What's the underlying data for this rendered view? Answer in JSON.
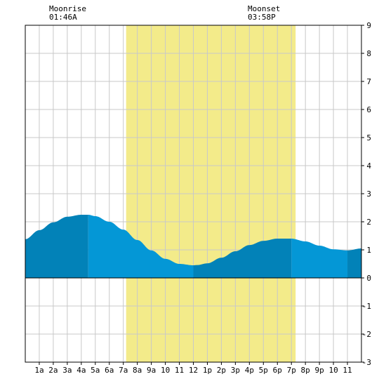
{
  "chart_data": {
    "type": "area",
    "x_unit": "hour of day",
    "x_range": [
      0,
      24
    ],
    "ylim": [
      -3,
      9
    ],
    "y_ticks": [
      "9",
      "8",
      "7",
      "6",
      "5",
      "4",
      "3",
      "2",
      "1",
      "0",
      "-1",
      "-2",
      "-3"
    ],
    "x_tick_labels": [
      "1a",
      "2a",
      "3a",
      "4a",
      "5a",
      "6a",
      "7a",
      "8a",
      "9a",
      "10",
      "11",
      "12",
      "1p",
      "2p",
      "3p",
      "4p",
      "5p",
      "6p",
      "7p",
      "8p",
      "9p",
      "10",
      "11"
    ],
    "grid": true,
    "daylight": {
      "start": 7.2,
      "end": 19.3
    },
    "moonrise": {
      "label": "Moonrise",
      "time": "01:46A"
    },
    "moonset": {
      "label": "Moonset",
      "time": "03:58P"
    },
    "series": [
      {
        "x": [
          0,
          1,
          2,
          3,
          4,
          4.5,
          5,
          6,
          7,
          8,
          9,
          10,
          11,
          12,
          12.3,
          13,
          14,
          15,
          16,
          17,
          18,
          18.9,
          19,
          20,
          21,
          22,
          23,
          24
        ],
        "values": [
          1.38,
          1.7,
          1.98,
          2.18,
          2.25,
          2.25,
          2.2,
          2.0,
          1.72,
          1.35,
          0.98,
          0.68,
          0.5,
          0.45,
          0.46,
          0.52,
          0.72,
          0.95,
          1.17,
          1.32,
          1.4,
          1.4,
          1.4,
          1.3,
          1.15,
          1.02,
          0.98,
          1.05
        ]
      }
    ],
    "colors": {
      "daylight": "#f3eb8a",
      "tide_dark": "#0282b8",
      "tide_light": "#0497d6",
      "grid": "#c8c8c8",
      "axis": "#000000"
    }
  }
}
